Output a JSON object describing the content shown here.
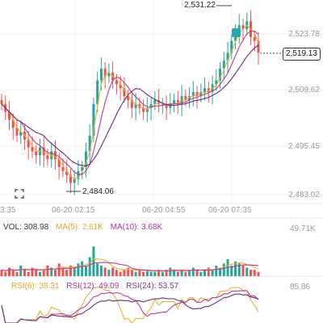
{
  "chart_data": {
    "type": "candlestick",
    "price_axis": [
      "2,523.78",
      "2,509.62",
      "2,495.45",
      "2,483.02"
    ],
    "time_axis": [
      "3:35",
      "06-20 02:15",
      "06-20 04:55",
      "06-20 07:35"
    ],
    "high_label": "2,531.22",
    "low_label": "2,484.06",
    "current_price": "2,519.13",
    "volume_axis_max": "49.71K",
    "rsi_axis_max": "85.86",
    "close_values": [
      2506,
      2504,
      2502,
      2500,
      2498,
      2499,
      2497,
      2495,
      2494,
      2493,
      2495,
      2493,
      2492,
      2494,
      2492,
      2490,
      2489,
      2488,
      2486,
      2487,
      2489,
      2490,
      2494,
      2498,
      2506,
      2512,
      2515,
      2513,
      2514,
      2512,
      2511,
      2510,
      2508,
      2507,
      2505,
      2506,
      2505,
      2504,
      2505,
      2506,
      2507,
      2506,
      2506,
      2505,
      2506,
      2507,
      2506,
      2508,
      2507,
      2508,
      2509,
      2508,
      2509,
      2510,
      2509,
      2511,
      2512,
      2515,
      2517,
      2519,
      2522,
      2524,
      2526,
      2525,
      2527,
      2523,
      2522,
      2519
    ],
    "volume_values": [
      3,
      2,
      4,
      3,
      2,
      5,
      3,
      2,
      4,
      3,
      2,
      3,
      5,
      4,
      3,
      6,
      4,
      3,
      5,
      4,
      6,
      7,
      5,
      9,
      14,
      6,
      5,
      4,
      3,
      4,
      3,
      2,
      3,
      4,
      3,
      2,
      3,
      2,
      3,
      2,
      2,
      3,
      2,
      3,
      4,
      3,
      2,
      3,
      2,
      3,
      4,
      3,
      2,
      3,
      4,
      3,
      5,
      4,
      6,
      8,
      5,
      7,
      6,
      5,
      4,
      3,
      3,
      2
    ]
  },
  "volume_legend": {
    "vol": "VOL: 308.98",
    "ma5": "MA(5): 2.61K",
    "ma10": "MA(10): 3.68K"
  },
  "rsi_legend": {
    "rsi6": "RSI(6): 38.31",
    "rsi12": "RSI(12): 49.09",
    "rsi24": "RSI(24): 53.57"
  },
  "colors": {
    "up": "#26a69a",
    "down": "#ef5350",
    "ma_short": "#e8b12e",
    "ma_mid": "#c0399a",
    "ma_long": "#6a2a7a"
  },
  "icons": [
    "fullscreen-icon",
    "position-marker-icon"
  ]
}
